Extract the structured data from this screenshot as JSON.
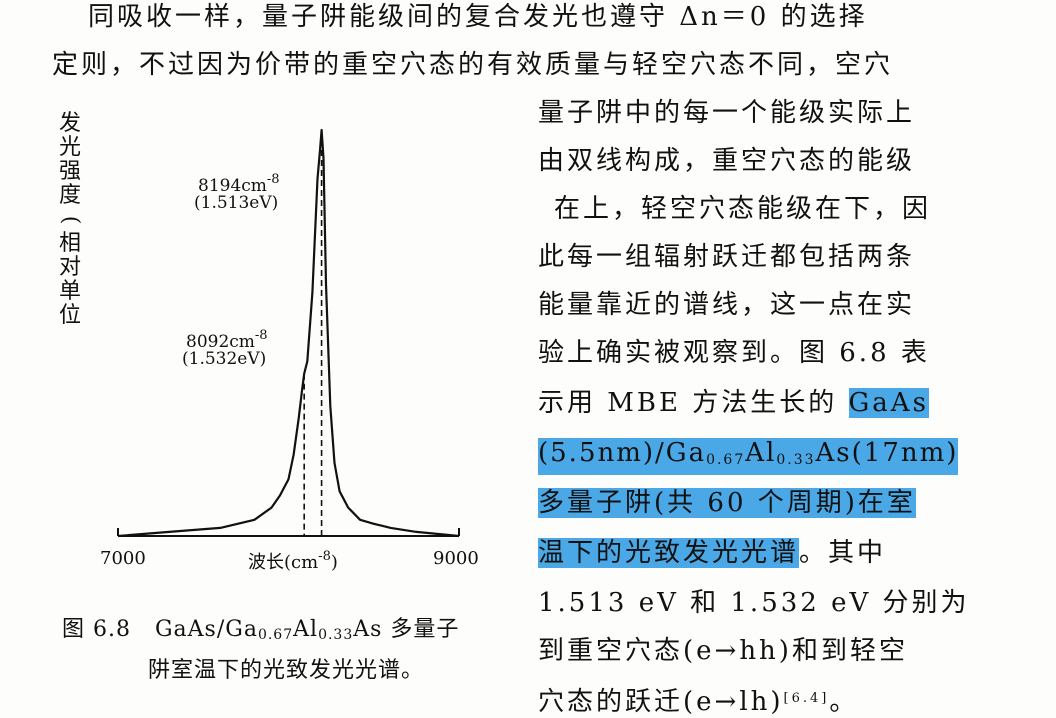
{
  "paragraph": {
    "line1": "同吸收一样，量子阱能级间的复合发光也遵守 Δn＝0 的选择",
    "line2": "定则，不过因为价带的重空穴态的有效质量与轻空穴态不同，空穴",
    "line3": "量子阱中的每一个能级实际上",
    "line4": "由双线构成，重空穴态的能级",
    "line5": "在上，轻空穴态能级在下，因",
    "line6": "此每一组辐射跃迁都包括两条",
    "line7": "能量靠近的谱线，这一点在实",
    "line8_a": "验上确实被观察到。图 6.8 表",
    "line9_a": "示用 MBE 方法生长的 ",
    "line9_hl": "GaAs",
    "line10_hl_a": "(5.5nm)/Ga",
    "line10_sub1": "0.67",
    "line10_hl_b": "Al",
    "line10_sub2": "0.33",
    "line10_hl_c": "As(17nm)",
    "line11_hl": "多量子阱(共 60 个周期)在室",
    "line12_hl": "温下的光致发光光谱",
    "line12_b": "。其中",
    "line13": "1.513 eV 和 1.532 eV 分别为",
    "line14": "到重空穴态(e→hh)和到轻空",
    "line15_a": "穴态的跃迁(e→lh)",
    "line15_ref": "[6.4]",
    "line15_b": "。"
  },
  "figure": {
    "ylabel_chars": [
      "发",
      "光",
      "强",
      "度",
      "(",
      "相",
      "对",
      "单",
      "位"
    ],
    "xlabel_a": "波长(cm",
    "xlabel_sup": "-8",
    "xlabel_b": ")",
    "tick_left": "7000",
    "tick_right": "9000",
    "peak1_value": "8194cm",
    "peak1_sup": "-8",
    "peak1_energy": "(1.513eV)",
    "peak2_value": "8092cm",
    "peak2_sup": "-8",
    "peak2_energy": "(1.532eV)",
    "caption_prefix": "图 6.8",
    "caption_a": "GaAs/Ga",
    "caption_sub1": "0.67",
    "caption_b": "Al",
    "caption_sub2": "0.33",
    "caption_c": "As 多量子",
    "caption_line2": "阱室温下的光致发光光谱。"
  },
  "chart_data": {
    "type": "line",
    "title": "GaAs/Ga0.67Al0.33As 多量子阱室温下的光致发光光谱",
    "xlabel": "波长(cm-8)",
    "ylabel": "发光强度(相对单位)",
    "xlim": [
      7000,
      9000
    ],
    "x_ticks": [
      "7000",
      "9000"
    ],
    "peaks": [
      {
        "x": 8194,
        "label": "8194cm-8 (1.513eV)",
        "y_relative": 1.0
      },
      {
        "x": 8092,
        "label": "8092cm-8 (1.532eV)",
        "y_relative": 0.4
      }
    ],
    "series": [
      {
        "x": [
          7000,
          7300,
          7600,
          7800,
          7900,
          7950,
          8000,
          8030,
          8060,
          8080,
          8092,
          8110,
          8140,
          8170,
          8185,
          8194,
          8205,
          8220,
          8245,
          8270,
          8300,
          8350,
          8420,
          8500,
          8600,
          8750,
          9000
        ],
        "y": [
          0.0,
          0.01,
          0.02,
          0.04,
          0.07,
          0.1,
          0.14,
          0.2,
          0.29,
          0.36,
          0.4,
          0.43,
          0.6,
          0.88,
          0.95,
          1.0,
          0.93,
          0.62,
          0.32,
          0.18,
          0.11,
          0.07,
          0.04,
          0.03,
          0.02,
          0.01,
          0.0
        ]
      }
    ]
  }
}
